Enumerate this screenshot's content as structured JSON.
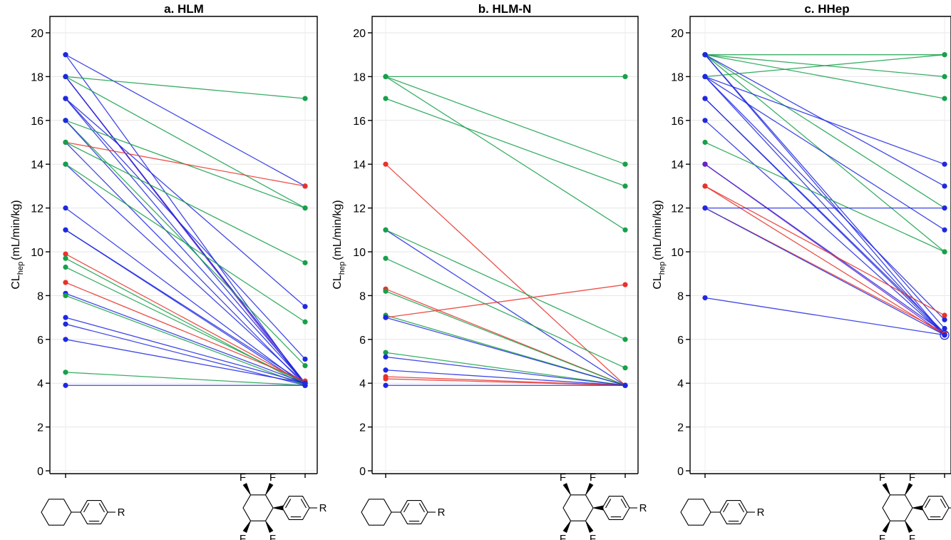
{
  "colors": {
    "metabolism_blue": "#1f28e0",
    "metabolism_purple": "#6a22c4",
    "metabolism_green": "#17a04a",
    "metabolism_red": "#e8322a"
  },
  "yaxis_label": {
    "main": "CL",
    "sub": "hep",
    "unit": "(mL/min/kg)"
  },
  "structures": {
    "atom_R": "R",
    "atom_F": "F"
  },
  "chart_data": [
    {
      "type": "line",
      "title": "a. HLM",
      "ylim": [
        0,
        20
      ],
      "yticks": [
        0,
        2,
        4,
        6,
        8,
        10,
        12,
        14,
        16,
        18,
        20
      ],
      "grid": true,
      "series": [
        {
          "color": "blue",
          "values": [
            19.0,
            13.0
          ]
        },
        {
          "color": "blue",
          "values": [
            19.0,
            3.9
          ]
        },
        {
          "color": "purple",
          "values": [
            18.0,
            4.0
          ]
        },
        {
          "color": "purple",
          "values": [
            18.0,
            3.9
          ]
        },
        {
          "color": "green",
          "values": [
            18.0,
            17.0
          ]
        },
        {
          "color": "green",
          "values": [
            18.0,
            12.0
          ]
        },
        {
          "color": "blue",
          "values": [
            18.0,
            4.0
          ]
        },
        {
          "color": "blue",
          "values": [
            17.0,
            7.5
          ]
        },
        {
          "color": "blue",
          "values": [
            17.0,
            5.1
          ]
        },
        {
          "color": "blue",
          "values": [
            17.0,
            4.0
          ]
        },
        {
          "color": "green",
          "values": [
            16.0,
            12.0
          ]
        },
        {
          "color": "green",
          "values": [
            16.0,
            4.8
          ]
        },
        {
          "color": "blue",
          "values": [
            16.0,
            4.0
          ]
        },
        {
          "color": "red",
          "values": [
            15.0,
            13.0
          ]
        },
        {
          "color": "blue",
          "values": [
            15.0,
            3.9
          ]
        },
        {
          "color": "green",
          "values": [
            15.0,
            9.5
          ]
        },
        {
          "color": "blue",
          "values": [
            14.0,
            4.0
          ]
        },
        {
          "color": "green",
          "values": [
            14.0,
            6.8
          ]
        },
        {
          "color": "blue",
          "values": [
            12.0,
            3.9
          ]
        },
        {
          "color": "blue",
          "values": [
            11.0,
            4.0
          ]
        },
        {
          "color": "blue",
          "values": [
            11.0,
            3.9
          ]
        },
        {
          "color": "red",
          "values": [
            9.9,
            4.0
          ]
        },
        {
          "color": "green",
          "values": [
            9.7,
            3.9
          ]
        },
        {
          "color": "green",
          "values": [
            9.3,
            4.0
          ]
        },
        {
          "color": "red",
          "values": [
            8.6,
            4.1
          ]
        },
        {
          "color": "blue",
          "values": [
            8.1,
            4.0
          ]
        },
        {
          "color": "green",
          "values": [
            8.0,
            3.9
          ]
        },
        {
          "color": "blue",
          "values": [
            7.0,
            4.0
          ]
        },
        {
          "color": "blue",
          "values": [
            6.7,
            3.9
          ]
        },
        {
          "color": "blue",
          "values": [
            6.0,
            4.0
          ]
        },
        {
          "color": "green",
          "values": [
            4.5,
            3.9
          ]
        },
        {
          "color": "blue",
          "values": [
            3.9,
            3.9
          ]
        }
      ]
    },
    {
      "type": "line",
      "title": "b. HLM-N",
      "ylim": [
        0,
        20
      ],
      "yticks": [
        0,
        2,
        4,
        6,
        8,
        10,
        12,
        14,
        16,
        18,
        20
      ],
      "grid": true,
      "series": [
        {
          "color": "green",
          "values": [
            18.0,
            18.0
          ]
        },
        {
          "color": "green",
          "values": [
            18.0,
            14.0
          ]
        },
        {
          "color": "green",
          "values": [
            18.0,
            11.0
          ]
        },
        {
          "color": "green",
          "values": [
            17.0,
            13.0
          ]
        },
        {
          "color": "red",
          "values": [
            14.0,
            3.9
          ]
        },
        {
          "color": "blue",
          "values": [
            11.0,
            3.9
          ]
        },
        {
          "color": "green",
          "values": [
            11.0,
            6.0
          ]
        },
        {
          "color": "green",
          "values": [
            9.7,
            4.7
          ]
        },
        {
          "color": "red",
          "values": [
            8.3,
            3.9
          ]
        },
        {
          "color": "green",
          "values": [
            8.2,
            3.9
          ]
        },
        {
          "color": "green",
          "values": [
            7.1,
            3.9
          ]
        },
        {
          "color": "red",
          "values": [
            7.0,
            8.5
          ]
        },
        {
          "color": "blue",
          "values": [
            7.0,
            3.9
          ]
        },
        {
          "color": "green",
          "values": [
            5.4,
            3.9
          ]
        },
        {
          "color": "blue",
          "values": [
            5.2,
            3.9
          ]
        },
        {
          "color": "blue",
          "values": [
            4.6,
            3.9
          ]
        },
        {
          "color": "red",
          "values": [
            4.3,
            3.9
          ]
        },
        {
          "color": "red",
          "values": [
            4.2,
            3.9
          ]
        },
        {
          "color": "blue",
          "values": [
            3.9,
            3.9
          ]
        }
      ]
    },
    {
      "type": "line",
      "title": "c. HHep",
      "ylim": [
        0,
        20
      ],
      "yticks": [
        0,
        2,
        4,
        6,
        8,
        10,
        12,
        14,
        16,
        18,
        20
      ],
      "grid": true,
      "series": [
        {
          "color": "green",
          "values": [
            19.0,
            19.0
          ]
        },
        {
          "color": "green",
          "values": [
            19.0,
            18.0
          ]
        },
        {
          "color": "green",
          "values": [
            19.0,
            17.0
          ]
        },
        {
          "color": "green",
          "values": [
            19.0,
            12.0
          ]
        },
        {
          "color": "green",
          "values": [
            19.0,
            10.0
          ]
        },
        {
          "color": "blue",
          "values": [
            19.0,
            13.0
          ]
        },
        {
          "color": "blue",
          "values": [
            19.0,
            6.5
          ]
        },
        {
          "color": "blue",
          "values": [
            19.0,
            6.2
          ]
        },
        {
          "color": "green",
          "values": [
            18.0,
            19.0
          ]
        },
        {
          "color": "blue",
          "values": [
            18.0,
            14.0
          ]
        },
        {
          "color": "blue",
          "values": [
            18.0,
            11.0
          ]
        },
        {
          "color": "blue",
          "values": [
            18.0,
            6.9
          ]
        },
        {
          "color": "blue",
          "values": [
            18.0,
            6.2
          ]
        },
        {
          "color": "blue",
          "values": [
            17.0,
            6.3
          ]
        },
        {
          "color": "blue",
          "values": [
            17.0,
            6.2
          ]
        },
        {
          "color": "blue",
          "values": [
            16.0,
            6.2
          ]
        },
        {
          "color": "green",
          "values": [
            15.0,
            10.0
          ]
        },
        {
          "color": "blue",
          "values": [
            14.0,
            6.3
          ]
        },
        {
          "color": "purple",
          "values": [
            14.0,
            6.2
          ]
        },
        {
          "color": "red",
          "values": [
            13.0,
            7.1
          ]
        },
        {
          "color": "red",
          "values": [
            13.0,
            6.2
          ]
        },
        {
          "color": "blue",
          "values": [
            12.0,
            12.0
          ]
        },
        {
          "color": "red",
          "values": [
            12.0,
            6.3
          ]
        },
        {
          "color": "blue",
          "values": [
            12.0,
            6.2
          ]
        },
        {
          "color": "blue",
          "values": [
            7.9,
            6.2
          ]
        }
      ]
    }
  ]
}
